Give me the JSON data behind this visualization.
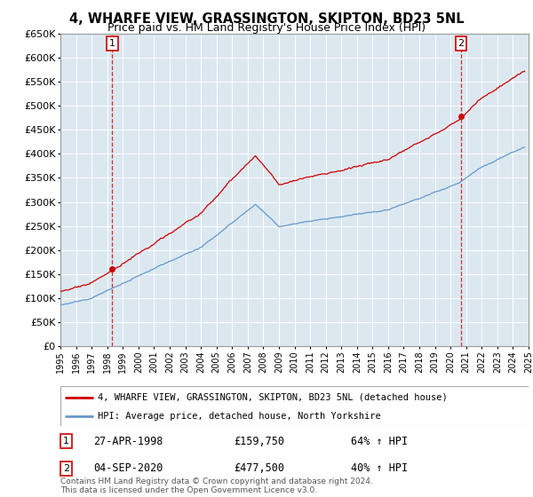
{
  "title": "4, WHARFE VIEW, GRASSINGTON, SKIPTON, BD23 5NL",
  "subtitle": "Price paid vs. HM Land Registry's House Price Index (HPI)",
  "legend_line1": "4, WHARFE VIEW, GRASSINGTON, SKIPTON, BD23 5NL (detached house)",
  "legend_line2": "HPI: Average price, detached house, North Yorkshire",
  "sale1_date": "27-APR-1998",
  "sale1_price": 159750,
  "sale1_label": "64% ↑ HPI",
  "sale2_date": "04-SEP-2020",
  "sale2_price": 477500,
  "sale2_label": "40% ↑ HPI",
  "footnote": "Contains HM Land Registry data © Crown copyright and database right 2024.\nThis data is licensed under the Open Government Licence v3.0.",
  "property_color": "#cc0000",
  "hpi_color": "#6699cc",
  "plot_bg_color": "#dce8f0",
  "ylim": [
    0,
    650000
  ],
  "yticks": [
    0,
    50000,
    100000,
    150000,
    200000,
    250000,
    300000,
    350000,
    400000,
    450000,
    500000,
    550000,
    600000,
    650000
  ],
  "sale1_x": 1998.32,
  "sale2_x": 2020.67,
  "hpi_data": {
    "years": [
      1995.0,
      1995.08,
      1995.17,
      1995.25,
      1995.33,
      1995.42,
      1995.5,
      1995.58,
      1995.67,
      1995.75,
      1995.83,
      1995.92,
      1996.0,
      1996.08,
      1996.17,
      1996.25,
      1996.33,
      1996.42,
      1996.5,
      1996.58,
      1996.67,
      1996.75,
      1996.83,
      1996.92,
      1997.0,
      1997.08,
      1997.17,
      1997.25,
      1997.33,
      1997.42,
      1997.5,
      1997.58,
      1997.67,
      1997.75,
      1997.83,
      1997.92,
      1998.0,
      1998.08,
      1998.17,
      1998.25,
      1998.33,
      1998.42,
      1998.5,
      1998.58,
      1998.67,
      1998.75,
      1998.83,
      1998.92,
      1999.0,
      1999.08,
      1999.17,
      1999.25,
      1999.33,
      1999.42,
      1999.5,
      1999.58,
      1999.67,
      1999.75,
      1999.83,
      1999.92,
      2000.0,
      2000.08,
      2000.17,
      2000.25,
      2000.33,
      2000.42,
      2000.5,
      2000.58,
      2000.67,
      2000.75,
      2000.83,
      2000.92,
      2001.0,
      2001.08,
      2001.17,
      2001.25,
      2001.33,
      2001.42,
      2001.5,
      2001.58,
      2001.67,
      2001.75,
      2001.83,
      2001.92,
      2002.0,
      2002.08,
      2002.17,
      2002.25,
      2002.33,
      2002.42,
      2002.5,
      2002.58,
      2002.67,
      2002.75,
      2002.83,
      2002.92,
      2003.0,
      2003.08,
      2003.17,
      2003.25,
      2003.33,
      2003.42,
      2003.5,
      2003.58,
      2003.67,
      2003.75,
      2003.83,
      2003.92,
      2004.0,
      2004.08,
      2004.17,
      2004.25,
      2004.33,
      2004.42,
      2004.5,
      2004.58,
      2004.67,
      2004.75,
      2004.83,
      2004.92,
      2005.0,
      2005.08,
      2005.17,
      2005.25,
      2005.33,
      2005.42,
      2005.5,
      2005.58,
      2005.67,
      2005.75,
      2005.83,
      2005.92,
      2006.0,
      2006.08,
      2006.17,
      2006.25,
      2006.33,
      2006.42,
      2006.5,
      2006.58,
      2006.67,
      2006.75,
      2006.83,
      2006.92,
      2007.0,
      2007.08,
      2007.17,
      2007.25,
      2007.33,
      2007.42,
      2007.5,
      2007.58,
      2007.67,
      2007.75,
      2007.83,
      2007.92,
      2008.0,
      2008.08,
      2008.17,
      2008.25,
      2008.33,
      2008.42,
      2008.5,
      2008.58,
      2008.67,
      2008.75,
      2008.83,
      2008.92,
      2009.0,
      2009.08,
      2009.17,
      2009.25,
      2009.33,
      2009.42,
      2009.5,
      2009.58,
      2009.67,
      2009.75,
      2009.83,
      2009.92,
      2010.0,
      2010.08,
      2010.17,
      2010.25,
      2010.33,
      2010.42,
      2010.5,
      2010.58,
      2010.67,
      2010.75,
      2010.83,
      2010.92,
      2011.0,
      2011.08,
      2011.17,
      2011.25,
      2011.33,
      2011.42,
      2011.5,
      2011.58,
      2011.67,
      2011.75,
      2011.83,
      2011.92,
      2012.0,
      2012.08,
      2012.17,
      2012.25,
      2012.33,
      2012.42,
      2012.5,
      2012.58,
      2012.67,
      2012.75,
      2012.83,
      2012.92,
      2013.0,
      2013.08,
      2013.17,
      2013.25,
      2013.33,
      2013.42,
      2013.5,
      2013.58,
      2013.67,
      2013.75,
      2013.83,
      2013.92,
      2014.0,
      2014.08,
      2014.17,
      2014.25,
      2014.33,
      2014.42,
      2014.5,
      2014.58,
      2014.67,
      2014.75,
      2014.83,
      2014.92,
      2015.0,
      2015.08,
      2015.17,
      2015.25,
      2015.33,
      2015.42,
      2015.5,
      2015.58,
      2015.67,
      2015.75,
      2015.83,
      2015.92,
      2016.0,
      2016.08,
      2016.17,
      2016.25,
      2016.33,
      2016.42,
      2016.5,
      2016.58,
      2016.67,
      2016.75,
      2016.83,
      2016.92,
      2017.0,
      2017.08,
      2017.17,
      2017.25,
      2017.33,
      2017.42,
      2017.5,
      2017.58,
      2017.67,
      2017.75,
      2017.83,
      2017.92,
      2018.0,
      2018.08,
      2018.17,
      2018.25,
      2018.33,
      2018.42,
      2018.5,
      2018.58,
      2018.67,
      2018.75,
      2018.83,
      2018.92,
      2019.0,
      2019.08,
      2019.17,
      2019.25,
      2019.33,
      2019.42,
      2019.5,
      2019.58,
      2019.67,
      2019.75,
      2019.83,
      2019.92,
      2020.0,
      2020.08,
      2020.17,
      2020.25,
      2020.33,
      2020.42,
      2020.5,
      2020.58,
      2020.67,
      2020.75,
      2020.83,
      2020.92,
      2021.0,
      2021.08,
      2021.17,
      2021.25,
      2021.33,
      2021.42,
      2021.5,
      2021.58,
      2021.67,
      2021.75,
      2021.83,
      2021.92,
      2022.0,
      2022.08,
      2022.17,
      2022.25,
      2022.33,
      2022.42,
      2022.5,
      2022.58,
      2022.67,
      2022.75,
      2022.83,
      2022.92,
      2023.0,
      2023.08,
      2023.17,
      2023.25,
      2023.33,
      2023.42,
      2023.5,
      2023.58,
      2023.67,
      2023.75,
      2023.83,
      2023.92,
      2024.0,
      2024.08,
      2024.17,
      2024.25,
      2024.33,
      2024.42,
      2024.5,
      2024.58,
      2024.67,
      2024.75
    ]
  }
}
